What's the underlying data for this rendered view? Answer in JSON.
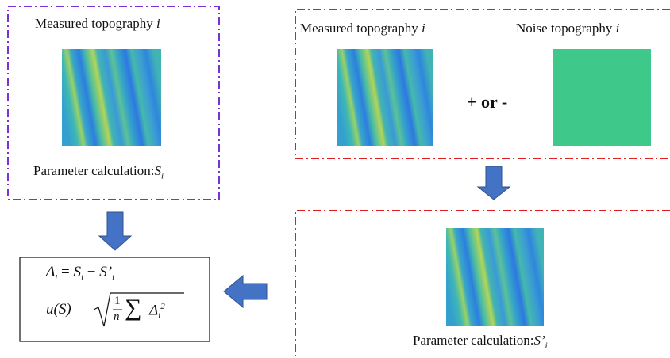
{
  "left_box": {
    "title": "Measured topography",
    "title_italic": "i",
    "caption": "Parameter calculation:",
    "caption_symbol": "S",
    "caption_subscript": "i"
  },
  "top_right_box": {
    "left_title": "Measured topography",
    "left_title_italic": "i",
    "right_title": "Noise topography",
    "right_title_italic": "i",
    "operator": "+ or -"
  },
  "bottom_right_box": {
    "caption": "Parameter calculation:",
    "caption_symbol": "S’",
    "caption_subscript": "i"
  },
  "formula": {
    "line1": {
      "lhs": "Δ",
      "lhs_sub": "i",
      "eq": "=",
      "a": "S",
      "a_sub": "i",
      "minus": "−",
      "b": "S’",
      "b_sub": "i"
    },
    "line2": {
      "lhs": "u(S)",
      "eq": "=",
      "num": "1",
      "den": "n",
      "sum": "∑",
      "term": "Δ",
      "term_sub": "i",
      "term_sup": "2"
    }
  }
}
